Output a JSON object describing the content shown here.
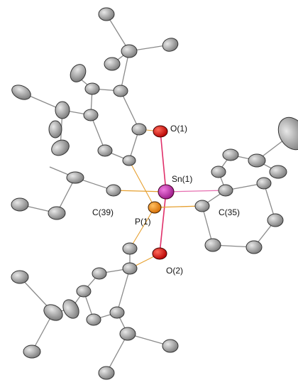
{
  "labels": {
    "o1": "O(1)",
    "sn1": "Sn(1)",
    "c39": "C(39)",
    "c35": "C(35)",
    "p1": "P(1)",
    "o2": "O(2)"
  }
}
